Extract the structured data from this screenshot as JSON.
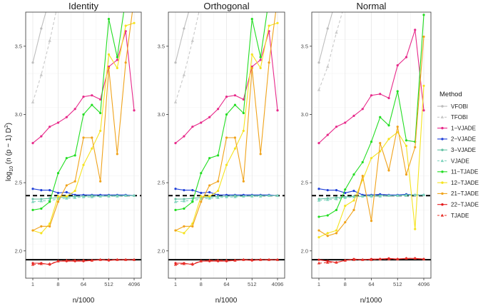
{
  "chart_data": {
    "type": "line",
    "xlabel": "n/1000",
    "ylabel_parts": [
      "log",
      "10",
      " (n (p − 1) D",
      "2",
      ")"
    ],
    "x_scale": "log2",
    "x_ticks": [
      1,
      8,
      64,
      512,
      4096
    ],
    "x_tick_labels": [
      "1",
      "8",
      "64",
      "512",
      "4096"
    ],
    "ylim": [
      1.8,
      3.75
    ],
    "y_ticks": [
      2.0,
      2.5,
      3.0,
      3.5
    ],
    "y_tick_labels": [
      "2.0",
      "2.5",
      "3.0",
      "3.5"
    ],
    "grid": true,
    "legend_title": "Method",
    "legend_position": "right",
    "x": [
      1,
      2,
      4,
      8,
      16,
      32,
      64,
      128,
      256,
      512,
      1024,
      2048,
      4096
    ],
    "series_styles": [
      {
        "name": "VFOBI",
        "color": "#bdbdbd",
        "dash": false,
        "marker": "circle"
      },
      {
        "name": "TFOBI",
        "color": "#c8c8c8",
        "dash": true,
        "marker": "triangle"
      },
      {
        "name": "1−VJADE",
        "color": "#e7298a",
        "dash": false,
        "marker": "circle"
      },
      {
        "name": "2−VJADE",
        "color": "#1f3fd8",
        "dash": false,
        "marker": "circle"
      },
      {
        "name": "3−VJADE",
        "color": "#66c2a5",
        "dash": false,
        "marker": "circle"
      },
      {
        "name": "VJADE",
        "color": "#7fd3bd",
        "dash": true,
        "marker": "triangle"
      },
      {
        "name": "11−TJADE",
        "color": "#22dd22",
        "dash": false,
        "marker": "circle"
      },
      {
        "name": "12−TJADE",
        "color": "#f5e31f",
        "dash": false,
        "marker": "circle"
      },
      {
        "name": "21−TJADE",
        "color": "#f0a31b",
        "dash": false,
        "marker": "circle"
      },
      {
        "name": "22−TJADE",
        "color": "#e41a1c",
        "dash": false,
        "marker": "circle"
      },
      {
        "name": "TJADE",
        "color": "#e8322a",
        "dash": true,
        "marker": "triangle"
      }
    ],
    "panels": [
      {
        "title": "Identity",
        "hlines": [
          {
            "y": 2.405,
            "dash": true
          },
          {
            "y": 1.935,
            "dash": false
          }
        ],
        "series": [
          {
            "name": "VFOBI",
            "values": [
              3.38,
              3.63,
              3.85,
              null,
              null,
              null,
              null,
              null,
              null,
              null,
              null,
              null,
              null
            ]
          },
          {
            "name": "TFOBI",
            "values": [
              3.09,
              3.29,
              3.54,
              3.82,
              null,
              null,
              null,
              null,
              null,
              null,
              null,
              null,
              null
            ]
          },
          {
            "name": "1−VJADE",
            "values": [
              2.79,
              2.84,
              2.91,
              2.94,
              2.98,
              3.04,
              3.13,
              3.14,
              3.11,
              3.35,
              3.4,
              3.61,
              3.03
            ]
          },
          {
            "name": "2−VJADE",
            "values": [
              2.455,
              2.445,
              2.445,
              2.425,
              2.43,
              2.41,
              2.41,
              2.41,
              2.41,
              2.41,
              2.41,
              2.41,
              2.405
            ]
          },
          {
            "name": "3−VJADE",
            "values": [
              2.38,
              2.38,
              2.385,
              2.39,
              2.395,
              2.4,
              2.4,
              2.405,
              2.4,
              2.405,
              2.405,
              2.405,
              2.405
            ]
          },
          {
            "name": "VJADE",
            "values": [
              2.36,
              2.365,
              2.37,
              2.38,
              2.385,
              2.39,
              2.395,
              2.395,
              2.4,
              2.4,
              2.4,
              2.405,
              2.405
            ]
          },
          {
            "name": "11−TJADE",
            "values": [
              2.3,
              2.31,
              2.36,
              2.57,
              2.68,
              2.7,
              3.0,
              3.07,
              3.01,
              3.7,
              3.42,
              3.85,
              null
            ]
          },
          {
            "name": "12−TJADE",
            "values": [
              2.15,
              2.13,
              2.2,
              2.4,
              2.4,
              2.44,
              2.63,
              2.75,
              2.88,
              3.44,
              3.34,
              3.65,
              3.67
            ]
          },
          {
            "name": "21−TJADE",
            "values": [
              2.15,
              2.18,
              2.18,
              2.36,
              2.48,
              2.51,
              2.83,
              2.83,
              2.51,
              3.34,
              2.71,
              3.38,
              3.85
            ]
          },
          {
            "name": "22−TJADE",
            "values": [
              1.91,
              1.91,
              1.9,
              1.925,
              1.925,
              1.925,
              1.925,
              1.93,
              1.935,
              1.93,
              1.935,
              1.935,
              1.935
            ]
          },
          {
            "name": "TJADE",
            "values": [
              1.9,
              1.905,
              1.905,
              1.925,
              1.93,
              1.93,
              1.93,
              1.93,
              1.935,
              1.935,
              1.935,
              1.935,
              1.935
            ]
          }
        ]
      },
      {
        "title": "Orthogonal",
        "hlines": [
          {
            "y": 2.405,
            "dash": true
          },
          {
            "y": 1.935,
            "dash": false
          }
        ],
        "series": [
          {
            "name": "VFOBI",
            "values": [
              3.38,
              3.63,
              3.85,
              null,
              null,
              null,
              null,
              null,
              null,
              null,
              null,
              null,
              null
            ]
          },
          {
            "name": "TFOBI",
            "values": [
              3.09,
              3.29,
              3.54,
              3.82,
              null,
              null,
              null,
              null,
              null,
              null,
              null,
              null,
              null
            ]
          },
          {
            "name": "1−VJADE",
            "values": [
              2.79,
              2.84,
              2.91,
              2.94,
              2.98,
              3.04,
              3.13,
              3.14,
              3.11,
              3.35,
              3.4,
              3.61,
              3.03
            ]
          },
          {
            "name": "2−VJADE",
            "values": [
              2.455,
              2.445,
              2.445,
              2.425,
              2.43,
              2.41,
              2.41,
              2.41,
              2.41,
              2.41,
              2.41,
              2.41,
              2.405
            ]
          },
          {
            "name": "3−VJADE",
            "values": [
              2.38,
              2.38,
              2.385,
              2.39,
              2.395,
              2.4,
              2.4,
              2.405,
              2.4,
              2.405,
              2.405,
              2.405,
              2.405
            ]
          },
          {
            "name": "VJADE",
            "values": [
              2.36,
              2.365,
              2.37,
              2.38,
              2.385,
              2.39,
              2.395,
              2.395,
              2.4,
              2.4,
              2.4,
              2.405,
              2.405
            ]
          },
          {
            "name": "11−TJADE",
            "values": [
              2.3,
              2.31,
              2.36,
              2.57,
              2.68,
              2.7,
              3.0,
              3.07,
              3.01,
              3.7,
              3.42,
              3.85,
              null
            ]
          },
          {
            "name": "12−TJADE",
            "values": [
              2.15,
              2.13,
              2.2,
              2.4,
              2.4,
              2.44,
              2.63,
              2.75,
              2.88,
              3.44,
              3.34,
              3.65,
              3.67
            ]
          },
          {
            "name": "21−TJADE",
            "values": [
              2.15,
              2.18,
              2.18,
              2.36,
              2.48,
              2.51,
              2.83,
              2.83,
              2.51,
              3.34,
              2.71,
              3.38,
              3.85
            ]
          },
          {
            "name": "22−TJADE",
            "values": [
              1.91,
              1.91,
              1.9,
              1.925,
              1.925,
              1.925,
              1.925,
              1.93,
              1.935,
              1.93,
              1.935,
              1.935,
              1.935
            ]
          },
          {
            "name": "TJADE",
            "values": [
              1.9,
              1.905,
              1.905,
              1.925,
              1.93,
              1.93,
              1.93,
              1.93,
              1.935,
              1.935,
              1.935,
              1.935,
              1.935
            ]
          }
        ]
      },
      {
        "title": "Normal",
        "hlines": [
          {
            "y": 2.405,
            "dash": true
          },
          {
            "y": 1.935,
            "dash": false
          }
        ],
        "series": [
          {
            "name": "VFOBI",
            "values": [
              3.38,
              3.63,
              3.85,
              null,
              null,
              null,
              null,
              null,
              null,
              null,
              null,
              null,
              null
            ]
          },
          {
            "name": "TFOBI",
            "values": [
              3.18,
              3.35,
              3.6,
              3.82,
              null,
              null,
              null,
              null,
              null,
              null,
              null,
              null,
              null
            ]
          },
          {
            "name": "1−VJADE",
            "values": [
              2.79,
              2.85,
              2.91,
              2.94,
              2.99,
              3.04,
              3.14,
              3.15,
              3.12,
              3.36,
              3.42,
              3.62,
              3.03
            ]
          },
          {
            "name": "2−VJADE",
            "values": [
              2.455,
              2.445,
              2.445,
              2.425,
              2.44,
              2.41,
              2.41,
              2.415,
              2.41,
              2.41,
              2.415,
              2.41,
              2.41
            ]
          },
          {
            "name": "3−VJADE",
            "values": [
              2.38,
              2.385,
              2.39,
              2.395,
              2.4,
              2.4,
              2.405,
              2.405,
              2.405,
              2.405,
              2.41,
              2.41,
              2.41
            ]
          },
          {
            "name": "VJADE",
            "values": [
              2.37,
              2.375,
              2.38,
              2.39,
              2.395,
              2.4,
              2.4,
              2.4,
              2.405,
              2.405,
              2.405,
              2.41,
              2.41
            ]
          },
          {
            "name": "11−TJADE",
            "values": [
              2.25,
              2.26,
              2.3,
              2.45,
              2.56,
              2.65,
              2.8,
              2.98,
              2.92,
              3.17,
              2.81,
              2.8,
              3.73
            ]
          },
          {
            "name": "12−TJADE",
            "values": [
              2.1,
              2.13,
              2.15,
              2.33,
              2.37,
              2.52,
              2.68,
              2.73,
              2.82,
              2.87,
              2.77,
              2.16,
              3.21
            ]
          },
          {
            "name": "21−TJADE",
            "values": [
              2.15,
              2.11,
              2.13,
              2.21,
              2.3,
              2.55,
              2.22,
              2.79,
              2.59,
              2.91,
              2.56,
              2.76,
              3.57
            ]
          },
          {
            "name": "22−TJADE",
            "values": [
              1.935,
              1.925,
              1.915,
              1.93,
              1.94,
              1.935,
              1.94,
              1.94,
              1.945,
              1.94,
              1.945,
              1.945,
              1.94
            ]
          },
          {
            "name": "TJADE",
            "values": [
              1.91,
              1.915,
              1.915,
              1.93,
              1.935,
              1.935,
              1.935,
              1.94,
              1.94,
              1.94,
              1.945,
              1.945,
              1.94
            ]
          }
        ]
      }
    ]
  }
}
